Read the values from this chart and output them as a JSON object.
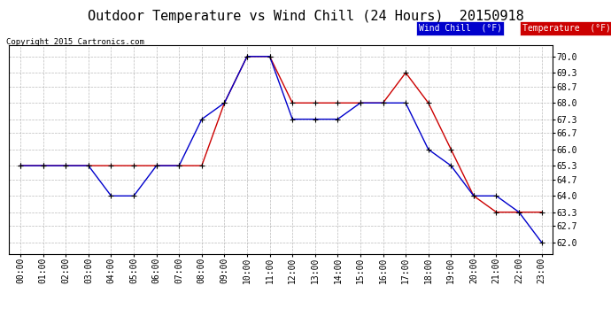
{
  "title": "Outdoor Temperature vs Wind Chill (24 Hours)  20150918",
  "copyright": "Copyright 2015 Cartronics.com",
  "legend_wind_chill": "Wind Chill  (°F)",
  "legend_temperature": "Temperature  (°F)",
  "hours": [
    0,
    1,
    2,
    3,
    4,
    5,
    6,
    7,
    8,
    9,
    10,
    11,
    12,
    13,
    14,
    15,
    16,
    17,
    18,
    19,
    20,
    21,
    22,
    23
  ],
  "temperature": [
    65.3,
    65.3,
    65.3,
    65.3,
    65.3,
    65.3,
    65.3,
    65.3,
    65.3,
    68.0,
    70.0,
    70.0,
    68.0,
    68.0,
    68.0,
    68.0,
    68.0,
    69.3,
    68.0,
    66.0,
    64.0,
    63.3,
    63.3,
    63.3
  ],
  "wind_chill": [
    65.3,
    65.3,
    65.3,
    65.3,
    64.0,
    64.0,
    65.3,
    65.3,
    67.3,
    68.0,
    70.0,
    70.0,
    67.3,
    67.3,
    67.3,
    68.0,
    68.0,
    68.0,
    66.0,
    65.3,
    64.0,
    64.0,
    63.3,
    62.0
  ],
  "ylim": [
    61.5,
    70.5
  ],
  "yticks": [
    62.0,
    62.7,
    63.3,
    64.0,
    64.7,
    65.3,
    66.0,
    66.7,
    67.3,
    68.0,
    68.7,
    69.3,
    70.0
  ],
  "bg_color": "#ffffff",
  "plot_bg_color": "#ffffff",
  "grid_color": "#aaaaaa",
  "wind_chill_color": "#0000cc",
  "temperature_color": "#cc0000",
  "marker_color": "#000000",
  "title_fontsize": 11,
  "copyright_fontsize": 6.5,
  "tick_fontsize": 7,
  "legend_fontsize": 7
}
